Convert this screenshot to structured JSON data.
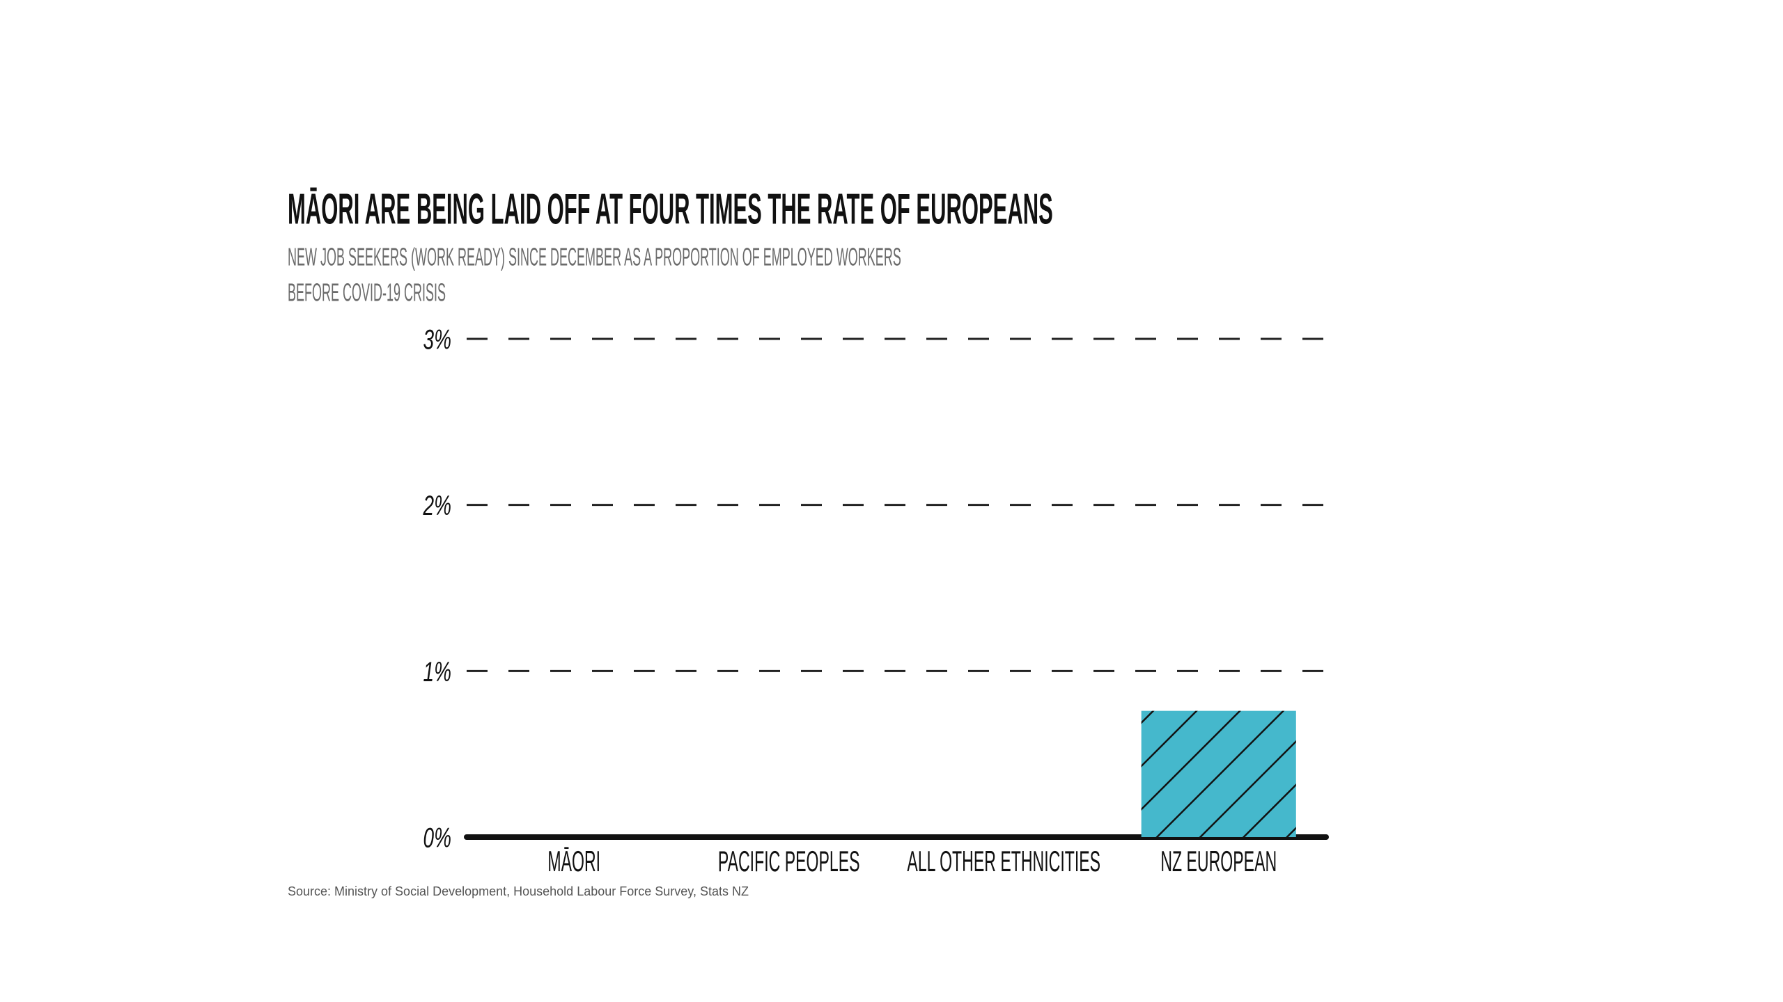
{
  "chart_data": {
    "type": "bar",
    "title": "MĀORI ARE BEING LAID OFF AT FOUR TIMES THE RATE OF EUROPEANS",
    "subtitle": [
      "NEW JOB SEEKERS (WORK READY) SINCE DECEMBER AS A PROPORTION OF EMPLOYED WORKERS",
      "BEFORE COVID-19 CRISIS"
    ],
    "categories": [
      "MĀORI",
      "PACIFIC PEOPLES",
      "ALL OTHER ETHNICITIES",
      "NZ EUROPEAN"
    ],
    "values": [
      0,
      0,
      0,
      0.76
    ],
    "color": "#45b8cc",
    "ylim": [
      0,
      3
    ],
    "yticks": [
      {
        "value": 0,
        "label": "0%"
      },
      {
        "value": 1,
        "label": "1%"
      },
      {
        "value": 2,
        "label": "2%"
      },
      {
        "value": 3,
        "label": "3%"
      }
    ],
    "grid": true,
    "source": "Source: Ministry of Social Development, Household Labour Force Survey, Stats NZ"
  }
}
